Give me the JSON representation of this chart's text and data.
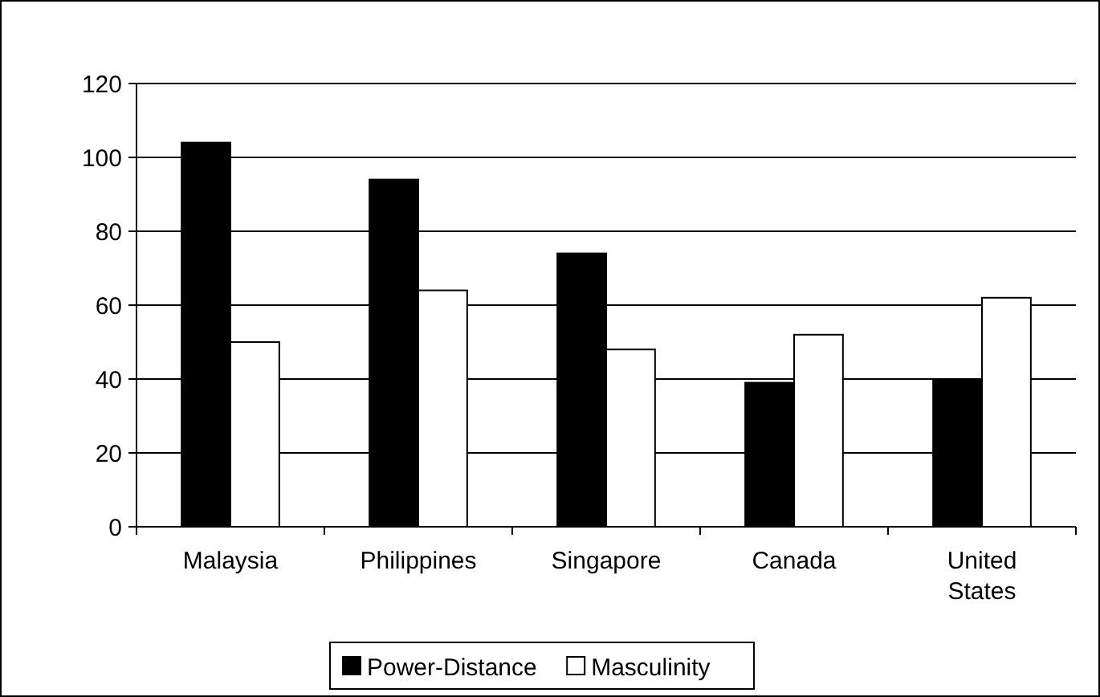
{
  "chart_data": {
    "type": "bar",
    "categories": [
      "Malaysia",
      "Philippines",
      "Singapore",
      "Canada",
      "United States"
    ],
    "series": [
      {
        "name": "Power-Distance",
        "color": "#000000",
        "values": [
          104,
          94,
          74,
          39,
          40
        ]
      },
      {
        "name": "Masculinity",
        "color": "#ffffff",
        "values": [
          50,
          64,
          48,
          52,
          62
        ]
      }
    ],
    "ylim": [
      0,
      120
    ],
    "yticks": [
      0,
      20,
      40,
      60,
      80,
      100,
      120
    ],
    "grid": "y",
    "legend": "bottom"
  }
}
